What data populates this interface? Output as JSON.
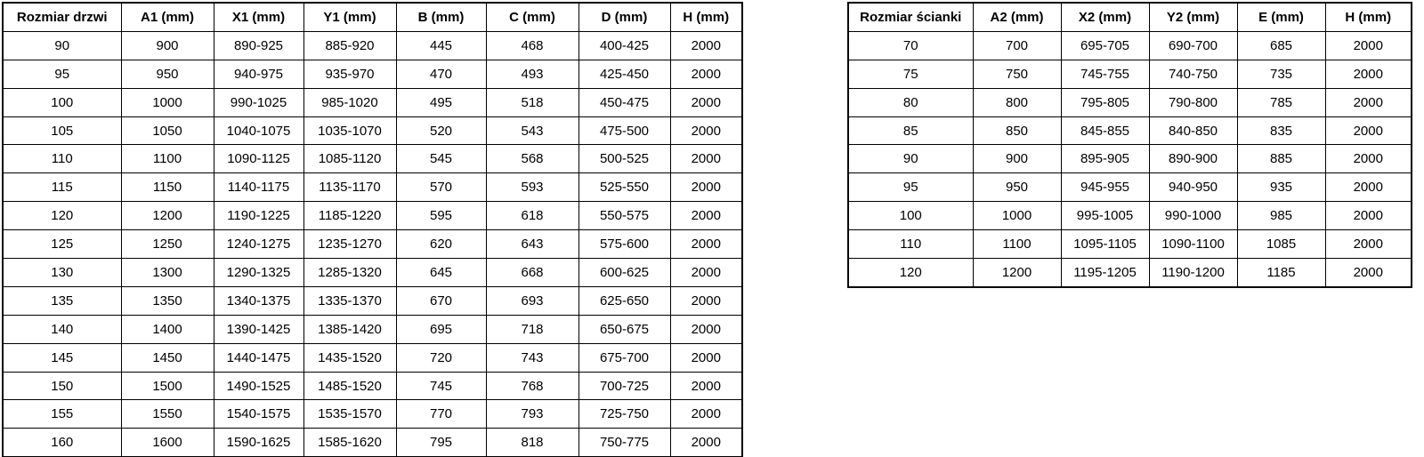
{
  "colors": {
    "background": "#ffffff",
    "border": "#000000",
    "text": "#000000"
  },
  "tables": [
    {
      "name": "door-dimensions-table",
      "headers": [
        "Rozmiar drzwi",
        "A1 (mm)",
        "X1 (mm)",
        "Y1 (mm)",
        "B (mm)",
        "C (mm)",
        "D (mm)",
        "H (mm)"
      ],
      "rows": [
        [
          "90",
          "900",
          "890-925",
          "885-920",
          "445",
          "468",
          "400-425",
          "2000"
        ],
        [
          "95",
          "950",
          "940-975",
          "935-970",
          "470",
          "493",
          "425-450",
          "2000"
        ],
        [
          "100",
          "1000",
          "990-1025",
          "985-1020",
          "495",
          "518",
          "450-475",
          "2000"
        ],
        [
          "105",
          "1050",
          "1040-1075",
          "1035-1070",
          "520",
          "543",
          "475-500",
          "2000"
        ],
        [
          "110",
          "1100",
          "1090-1125",
          "1085-1120",
          "545",
          "568",
          "500-525",
          "2000"
        ],
        [
          "115",
          "1150",
          "1140-1175",
          "1135-1170",
          "570",
          "593",
          "525-550",
          "2000"
        ],
        [
          "120",
          "1200",
          "1190-1225",
          "1185-1220",
          "595",
          "618",
          "550-575",
          "2000"
        ],
        [
          "125",
          "1250",
          "1240-1275",
          "1235-1270",
          "620",
          "643",
          "575-600",
          "2000"
        ],
        [
          "130",
          "1300",
          "1290-1325",
          "1285-1320",
          "645",
          "668",
          "600-625",
          "2000"
        ],
        [
          "135",
          "1350",
          "1340-1375",
          "1335-1370",
          "670",
          "693",
          "625-650",
          "2000"
        ],
        [
          "140",
          "1400",
          "1390-1425",
          "1385-1420",
          "695",
          "718",
          "650-675",
          "2000"
        ],
        [
          "145",
          "1450",
          "1440-1475",
          "1435-1520",
          "720",
          "743",
          "675-700",
          "2000"
        ],
        [
          "150",
          "1500",
          "1490-1525",
          "1485-1520",
          "745",
          "768",
          "700-725",
          "2000"
        ],
        [
          "155",
          "1550",
          "1540-1575",
          "1535-1570",
          "770",
          "793",
          "725-750",
          "2000"
        ],
        [
          "160",
          "1600",
          "1590-1625",
          "1585-1620",
          "795",
          "818",
          "750-775",
          "2000"
        ]
      ]
    },
    {
      "name": "wall-dimensions-table",
      "headers": [
        "Rozmiar ścianki",
        "A2 (mm)",
        "X2 (mm)",
        "Y2 (mm)",
        "E (mm)",
        "H (mm)"
      ],
      "rows": [
        [
          "70",
          "700",
          "695-705",
          "690-700",
          "685",
          "2000"
        ],
        [
          "75",
          "750",
          "745-755",
          "740-750",
          "735",
          "2000"
        ],
        [
          "80",
          "800",
          "795-805",
          "790-800",
          "785",
          "2000"
        ],
        [
          "85",
          "850",
          "845-855",
          "840-850",
          "835",
          "2000"
        ],
        [
          "90",
          "900",
          "895-905",
          "890-900",
          "885",
          "2000"
        ],
        [
          "95",
          "950",
          "945-955",
          "940-950",
          "935",
          "2000"
        ],
        [
          "100",
          "1000",
          "995-1005",
          "990-1000",
          "985",
          "2000"
        ],
        [
          "110",
          "1100",
          "1095-1105",
          "1090-1100",
          "1085",
          "2000"
        ],
        [
          "120",
          "1200",
          "1195-1205",
          "1190-1200",
          "1185",
          "2000"
        ]
      ]
    }
  ]
}
